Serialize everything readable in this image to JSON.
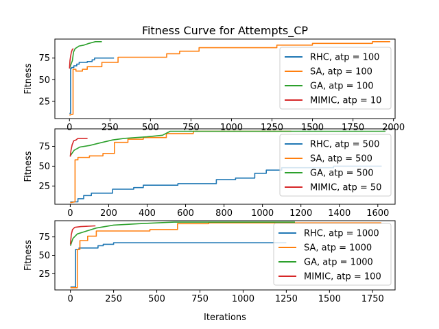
{
  "figure": {
    "title": "Fitness Curve for Attempts_CP"
  },
  "chart_data": [
    {
      "type": "line",
      "xlabel": "",
      "ylabel": "Fitness",
      "xlim": [
        -90,
        2010
      ],
      "ylim": [
        5,
        97
      ],
      "xticks": [
        0,
        250,
        500,
        750,
        1000,
        1250,
        1500,
        1750,
        2000
      ],
      "yticks": [
        25,
        50,
        75
      ],
      "legend": "right",
      "series": [
        {
          "name": "RHC, atp = 100",
          "color": "#1f77b4",
          "points": [
            [
              0,
              11
            ],
            [
              7,
              11
            ],
            [
              7,
              63
            ],
            [
              12,
              63
            ],
            [
              12,
              64
            ],
            [
              27,
              64
            ],
            [
              27,
              66
            ],
            [
              45,
              66
            ],
            [
              45,
              68
            ],
            [
              60,
              68
            ],
            [
              60,
              70
            ],
            [
              110,
              70
            ],
            [
              110,
              71
            ],
            [
              140,
              71
            ],
            [
              140,
              73
            ],
            [
              155,
              73
            ],
            [
              155,
              75
            ],
            [
              275,
              75
            ]
          ]
        },
        {
          "name": "SA, atp = 100",
          "color": "#ff7f0e",
          "points": [
            [
              0,
              9
            ],
            [
              20,
              10
            ],
            [
              22,
              10
            ],
            [
              22,
              62
            ],
            [
              40,
              62
            ],
            [
              40,
              60
            ],
            [
              80,
              60
            ],
            [
              80,
              62
            ],
            [
              110,
              62
            ],
            [
              110,
              65
            ],
            [
              200,
              65
            ],
            [
              200,
              70
            ],
            [
              300,
              70
            ],
            [
              300,
              76
            ],
            [
              600,
              76
            ],
            [
              600,
              80
            ],
            [
              680,
              80
            ],
            [
              680,
              83
            ],
            [
              800,
              83
            ],
            [
              800,
              87
            ],
            [
              1280,
              87
            ],
            [
              1280,
              90
            ],
            [
              1500,
              90
            ],
            [
              1500,
              92
            ],
            [
              1870,
              92
            ],
            [
              1870,
              94
            ],
            [
              1980,
              94
            ]
          ]
        },
        {
          "name": "GA, atp = 100",
          "color": "#2ca02c",
          "points": [
            [
              0,
              63
            ],
            [
              10,
              68
            ],
            [
              18,
              72
            ],
            [
              25,
              82
            ],
            [
              35,
              86
            ],
            [
              60,
              89
            ],
            [
              90,
              90
            ],
            [
              120,
              92
            ],
            [
              160,
              94
            ],
            [
              200,
              94
            ]
          ]
        },
        {
          "name": "MIMIC, atp = 10",
          "color": "#d62728",
          "points": [
            [
              0,
              63
            ],
            [
              3,
              72
            ],
            [
              8,
              78
            ],
            [
              12,
              82
            ],
            [
              18,
              85
            ],
            [
              24,
              86
            ]
          ]
        }
      ]
    },
    {
      "type": "line",
      "xlabel": "",
      "ylabel": "Fitness",
      "xlim": [
        -80,
        1690
      ],
      "ylim": [
        2,
        97
      ],
      "xticks": [
        0,
        200,
        400,
        600,
        800,
        1000,
        1200,
        1400,
        1600
      ],
      "yticks": [
        25,
        50,
        75
      ],
      "legend": "right",
      "series": [
        {
          "name": "RHC, atp = 500",
          "color": "#1f77b4",
          "points": [
            [
              0,
              5
            ],
            [
              40,
              5
            ],
            [
              40,
              9
            ],
            [
              70,
              9
            ],
            [
              70,
              13
            ],
            [
              110,
              13
            ],
            [
              110,
              16
            ],
            [
              220,
              16
            ],
            [
              220,
              21
            ],
            [
              330,
              21
            ],
            [
              330,
              23
            ],
            [
              380,
              23
            ],
            [
              380,
              26
            ],
            [
              560,
              26
            ],
            [
              560,
              28
            ],
            [
              760,
              28
            ],
            [
              760,
              33
            ],
            [
              860,
              33
            ],
            [
              860,
              35
            ],
            [
              960,
              35
            ],
            [
              960,
              41
            ],
            [
              1020,
              41
            ],
            [
              1020,
              45
            ],
            [
              1100,
              45
            ],
            [
              1100,
              48
            ],
            [
              1370,
              48
            ],
            [
              1370,
              50
            ],
            [
              1620,
              50
            ]
          ]
        },
        {
          "name": "SA, atp = 500",
          "color": "#ff7f0e",
          "points": [
            [
              0,
              4
            ],
            [
              25,
              5
            ],
            [
              25,
              58
            ],
            [
              40,
              58
            ],
            [
              40,
              61
            ],
            [
              100,
              61
            ],
            [
              100,
              63
            ],
            [
              170,
              63
            ],
            [
              170,
              66
            ],
            [
              230,
              66
            ],
            [
              230,
              80
            ],
            [
              300,
              80
            ],
            [
              300,
              84
            ],
            [
              380,
              84
            ],
            [
              380,
              86
            ],
            [
              500,
              86
            ],
            [
              500,
              91
            ],
            [
              640,
              91
            ],
            [
              640,
              94
            ],
            [
              1150,
              94
            ]
          ]
        },
        {
          "name": "GA, atp = 500",
          "color": "#2ca02c",
          "points": [
            [
              0,
              63
            ],
            [
              20,
              70
            ],
            [
              50,
              74
            ],
            [
              100,
              76
            ],
            [
              150,
              79
            ],
            [
              220,
              83
            ],
            [
              280,
              85
            ],
            [
              400,
              87
            ],
            [
              480,
              89
            ],
            [
              520,
              94
            ],
            [
              1640,
              94
            ]
          ]
        },
        {
          "name": "MIMIC, atp = 50",
          "color": "#d62728",
          "points": [
            [
              0,
              62
            ],
            [
              4,
              70
            ],
            [
              10,
              77
            ],
            [
              18,
              82
            ],
            [
              30,
              83
            ],
            [
              40,
              85
            ],
            [
              90,
              85
            ]
          ]
        }
      ]
    },
    {
      "type": "line",
      "xlabel": "Iterations",
      "ylabel": "Fitness",
      "xlim": [
        -90,
        1880
      ],
      "ylim": [
        3,
        97
      ],
      "xticks": [
        0,
        250,
        500,
        750,
        1000,
        1250,
        1500,
        1750
      ],
      "yticks": [
        25,
        50,
        75
      ],
      "legend": "right",
      "series": [
        {
          "name": "RHC, atp = 1000",
          "color": "#1f77b4",
          "points": [
            [
              0,
              7
            ],
            [
              30,
              7
            ],
            [
              30,
              58
            ],
            [
              50,
              58
            ],
            [
              50,
              60
            ],
            [
              160,
              60
            ],
            [
              160,
              63
            ],
            [
              190,
              63
            ],
            [
              190,
              65
            ],
            [
              250,
              65
            ],
            [
              250,
              67
            ],
            [
              1250,
              67
            ]
          ]
        },
        {
          "name": "SA, atp = 1000",
          "color": "#ff7f0e",
          "points": [
            [
              0,
              6
            ],
            [
              40,
              6
            ],
            [
              40,
              58
            ],
            [
              55,
              58
            ],
            [
              55,
              70
            ],
            [
              100,
              70
            ],
            [
              100,
              76
            ],
            [
              150,
              76
            ],
            [
              150,
              83
            ],
            [
              460,
              83
            ],
            [
              460,
              85
            ],
            [
              620,
              85
            ],
            [
              620,
              93
            ],
            [
              800,
              93
            ],
            [
              800,
              94
            ],
            [
              1800,
              94
            ]
          ]
        },
        {
          "name": "GA, atp = 1000",
          "color": "#2ca02c",
          "points": [
            [
              0,
              63
            ],
            [
              15,
              73
            ],
            [
              40,
              79
            ],
            [
              80,
              82
            ],
            [
              150,
              87
            ],
            [
              250,
              91
            ],
            [
              400,
              93
            ],
            [
              600,
              95
            ],
            [
              1300,
              95
            ]
          ]
        },
        {
          "name": "MIMIC, atp = 100",
          "color": "#d62728",
          "points": [
            [
              0,
              65
            ],
            [
              5,
              78
            ],
            [
              12,
              85
            ],
            [
              25,
              88
            ],
            [
              60,
              89
            ],
            [
              145,
              90
            ]
          ]
        }
      ]
    }
  ]
}
